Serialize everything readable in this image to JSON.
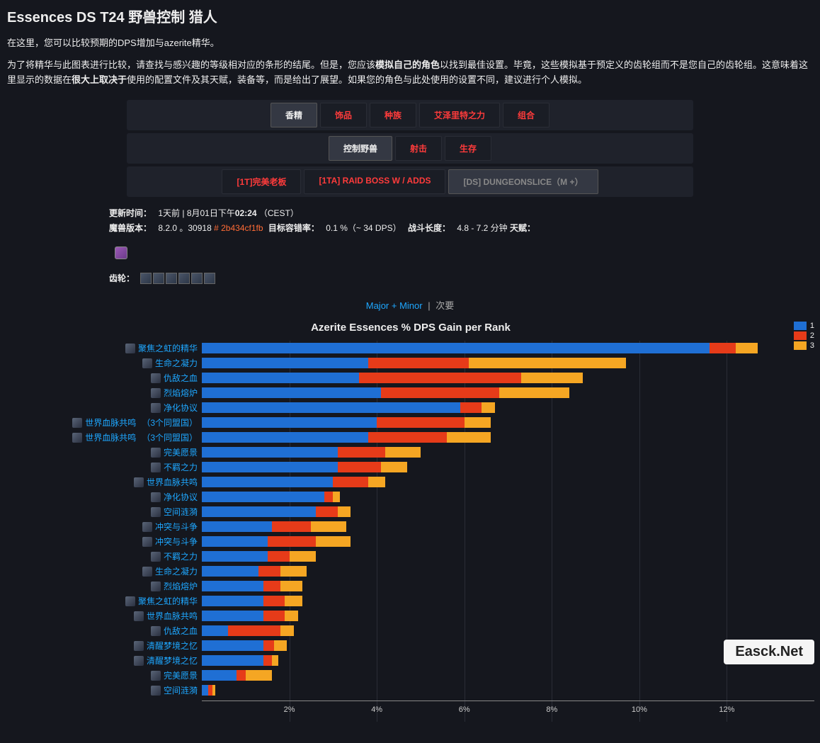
{
  "page": {
    "title": "Essences DS T24 野兽控制 猎人",
    "intro1": "在这里，您可以比较预期的DPS增加与azerite精华。",
    "intro2_pre": "为了将精华与此图表进行比较，请查找与感兴趣的等级相对应的条形的结尾。但是，您应该",
    "intro2_bold1": "模拟自己的角色",
    "intro2_mid": "以找到最佳设置。毕竟，这些模拟基于预定义的齿轮组而不是您自己的齿轮组。这意味着这里显示的数据在",
    "intro2_bold2": "很大上取决于",
    "intro2_post": "使用的配置文件及其天赋，装备等，而是给出了展望。如果您的角色与此处使用的设置不同，建议进行个人模拟。"
  },
  "tabs": {
    "row1": [
      {
        "label": "香精",
        "active": true
      },
      {
        "label": "饰品",
        "active": false
      },
      {
        "label": "种族",
        "active": false
      },
      {
        "label": "艾泽里特之力",
        "active": false
      },
      {
        "label": "组合",
        "active": false
      }
    ],
    "row2": [
      {
        "label": "控制野兽",
        "active": true
      },
      {
        "label": "射击",
        "active": false
      },
      {
        "label": "生存",
        "active": false
      }
    ],
    "row3": [
      {
        "label": "[1T]完美老板",
        "active": false
      },
      {
        "label": "[1TA] RAID BOSS W / ADDS",
        "active": false
      },
      {
        "label": "[DS] DUNGEONSLICE（M +）",
        "active": true,
        "muted": true
      }
    ]
  },
  "meta": {
    "updated_label": "更新时间：",
    "updated_value_pre": "1天前 | 8月01日下午",
    "updated_time": "02:24",
    "updated_tz": "（CEST）",
    "wow_label": "魔兽版本：",
    "wow_ver": "8.2.0 。30918",
    "hash": "# 2b434cf1fb",
    "err_label": "目标容错率：",
    "err_value": "0.1 %（~ 34 DPS）",
    "fight_label": "战斗长度：",
    "fight_value": "4.8 - 7.2 分钟",
    "talents_label": "天赋：",
    "gear_label": "齿轮："
  },
  "chartfilter": {
    "majorminor": "Major + Minor",
    "minor": "次要"
  },
  "chart": {
    "title": "Azerite Essences % DPS Gain per Rank",
    "xmax": 14,
    "xticks": [
      2,
      4,
      6,
      8,
      10,
      12
    ],
    "xtick_fmt": "%",
    "colors": {
      "r1": "#1f6fd4",
      "r2": "#e63b19",
      "r3": "#f5a623",
      "grid": "#2a2d36",
      "bg": "#15171e"
    },
    "legend": [
      {
        "label": "1",
        "color": "#1f6fd4"
      },
      {
        "label": "2",
        "color": "#e63b19"
      },
      {
        "label": "3",
        "color": "#f5a623"
      }
    ],
    "rows": [
      {
        "label": "聚焦之虹的精华",
        "paren": "",
        "v": [
          11.6,
          0.6,
          0.5
        ]
      },
      {
        "label": "生命之凝力",
        "paren": "",
        "v": [
          3.8,
          2.3,
          3.6
        ]
      },
      {
        "label": "仇敌之血",
        "paren": "",
        "v": [
          3.6,
          3.7,
          1.4
        ]
      },
      {
        "label": "烈焰熔炉",
        "paren": "",
        "v": [
          4.1,
          2.7,
          1.6
        ]
      },
      {
        "label": "净化协议",
        "paren": "",
        "v": [
          5.9,
          0.5,
          0.3
        ]
      },
      {
        "label": "世界血脉共鸣",
        "paren": "（3个同盟国）",
        "v": [
          4.0,
          2.0,
          0.6
        ]
      },
      {
        "label": "世界血脉共鸣",
        "paren": "（3个同盟国）",
        "v": [
          3.8,
          1.8,
          1.0
        ]
      },
      {
        "label": "完美愿景",
        "paren": "",
        "v": [
          3.1,
          1.1,
          0.8
        ]
      },
      {
        "label": "不羁之力",
        "paren": "",
        "v": [
          3.1,
          1.0,
          0.6
        ]
      },
      {
        "label": "世界血脉共鸣",
        "paren": "",
        "v": [
          3.0,
          0.8,
          0.4
        ]
      },
      {
        "label": "净化协议",
        "paren": "",
        "v": [
          2.8,
          0.2,
          0.15
        ]
      },
      {
        "label": "空间涟漪",
        "paren": "",
        "v": [
          2.6,
          0.5,
          0.3
        ]
      },
      {
        "label": "冲突与斗争",
        "paren": "",
        "v": [
          1.6,
          0.9,
          0.8
        ]
      },
      {
        "label": "冲突与斗争",
        "paren": "",
        "v": [
          1.5,
          1.1,
          0.8
        ]
      },
      {
        "label": "不羁之力",
        "paren": "",
        "v": [
          1.5,
          0.5,
          0.6
        ]
      },
      {
        "label": "生命之凝力",
        "paren": "",
        "v": [
          1.3,
          0.5,
          0.6
        ]
      },
      {
        "label": "烈焰熔炉",
        "paren": "",
        "v": [
          1.4,
          0.4,
          0.5
        ]
      },
      {
        "label": "聚焦之虹的精华",
        "paren": "",
        "v": [
          1.4,
          0.5,
          0.4
        ]
      },
      {
        "label": "世界血脉共鸣",
        "paren": "",
        "v": [
          1.4,
          0.5,
          0.3
        ]
      },
      {
        "label": "仇敌之血",
        "paren": "",
        "v": [
          0.6,
          1.2,
          0.3
        ]
      },
      {
        "label": "清醒梦境之忆",
        "paren": "",
        "v": [
          1.4,
          0.25,
          0.3
        ]
      },
      {
        "label": "清醒梦境之忆",
        "paren": "",
        "v": [
          1.4,
          0.2,
          0.15
        ]
      },
      {
        "label": "完美愿景",
        "paren": "",
        "v": [
          0.8,
          0.2,
          0.6
        ]
      },
      {
        "label": "空间涟漪",
        "paren": "",
        "v": [
          0.15,
          0.1,
          0.05
        ]
      }
    ]
  },
  "watermark": "Easck.Net"
}
